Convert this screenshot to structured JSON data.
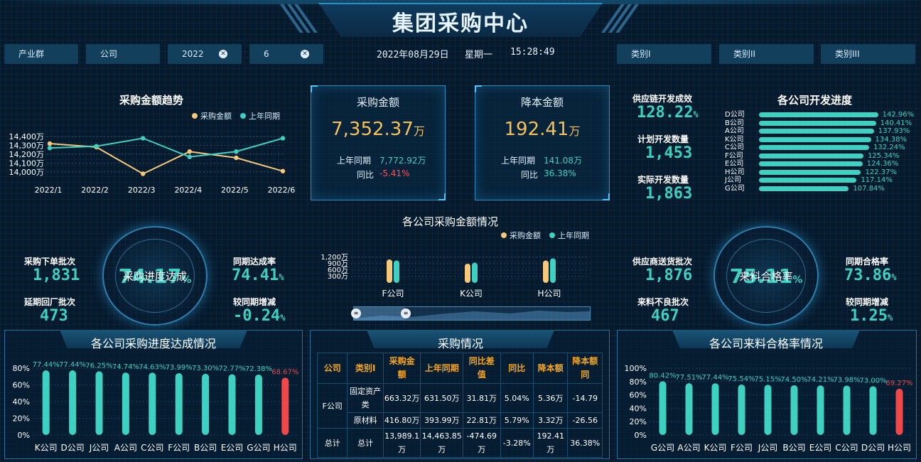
{
  "header": {
    "title": "集团采购中心",
    "date": "2022年08月29日",
    "weekday": "星期一",
    "time": "15:28:49"
  },
  "filters": {
    "industry": "产业群",
    "company": "公司",
    "year": "2022",
    "month": "6",
    "category1": "类别I",
    "category2": "类别II",
    "category3": "类别III"
  },
  "trend": {
    "title": "采购金额趋势",
    "legend_current": "采购金额",
    "legend_last": "上年同期",
    "y_ticks": [
      "14,400万",
      "14,300万",
      "14,200万",
      "14,100万",
      "14,000万"
    ],
    "x_ticks": [
      "2022/1",
      "2022/2",
      "2022/3",
      "2022/4",
      "2022/5",
      "2022/6"
    ],
    "colors": {
      "current": "#f5c87a",
      "last": "#3ed1c2"
    }
  },
  "kpi_purchase": {
    "label": "采购金额",
    "value": "7,352.37",
    "unit": "万",
    "last_label": "上年同期",
    "last_value": "7,772.92万",
    "yoy_label": "同比",
    "yoy_value": "-5.41%"
  },
  "kpi_saving": {
    "label": "降本金额",
    "value": "192.41",
    "unit": "万",
    "last_label": "上年同期",
    "last_value": "141.08万",
    "yoy_label": "同比",
    "yoy_value": "36.38%"
  },
  "supply_dev": {
    "rate_label": "供应链开发成效",
    "rate_value": "128.22",
    "rate_unit": "%",
    "plan_label": "计划开发数量",
    "plan_value": "1,453",
    "actual_label": "实际开发数量",
    "actual_value": "1,863"
  },
  "dev_progress": {
    "title": "各公司开发进度",
    "items": [
      {
        "company": "D公司",
        "value": "142.96%"
      },
      {
        "company": "B公司",
        "value": "140.41%"
      },
      {
        "company": "A公司",
        "value": "137.93%"
      },
      {
        "company": "K公司",
        "value": "134.38%"
      },
      {
        "company": "C公司",
        "value": "132.24%"
      },
      {
        "company": "F公司",
        "value": "125.34%"
      },
      {
        "company": "E公司",
        "value": "124.36%"
      },
      {
        "company": "H公司",
        "value": "122.37%"
      },
      {
        "company": "J公司",
        "value": "117.14%"
      },
      {
        "company": "G公司",
        "value": "107.84%"
      }
    ]
  },
  "company_purchase": {
    "title": "各公司采购金额情况",
    "legend_current": "采购金额",
    "legend_last": "上年同期",
    "y_ticks": [
      "1,200万",
      "900万",
      "600万",
      "300万"
    ],
    "companies": [
      "F公司",
      "K公司",
      "H公司"
    ]
  },
  "left_stats": {
    "order_label": "采购下单批次",
    "order_value": "1,831",
    "delay_label": "延期回厂批次",
    "delay_value": "473",
    "ring_value": "74.17",
    "ring_unit": "%",
    "ring_label": "采购进度达成",
    "yoy_rate_label": "同期达成率",
    "yoy_rate_value": "74.41",
    "change_label": "较同期增减",
    "change_value": "-0.24",
    "unit": "%"
  },
  "right_stats": {
    "delivery_label": "供应商送货批次",
    "delivery_value": "1,876",
    "defect_label": "来料不良批次",
    "defect_value": "467",
    "ring_value": "75.11",
    "ring_unit": "%",
    "ring_label": "来料合格率",
    "yoy_rate_label": "同期合格率",
    "yoy_rate_value": "73.86",
    "change_label": "较同期增减",
    "change_value": "1.25",
    "unit": "%"
  },
  "progress_panel": {
    "title": "各公司采购进度达成情况",
    "y_ticks": [
      "80%",
      "60%",
      "40%",
      "20%",
      "0%"
    ]
  },
  "quality_panel": {
    "title": "各公司来料合格率情况",
    "y_ticks": [
      "100%",
      "80%",
      "60%",
      "40%",
      "20%",
      "0%"
    ]
  },
  "purchase_table": {
    "title": "采购情况",
    "headers": [
      "公司",
      "类别I",
      "采购金额",
      "上年同期",
      "同比差值",
      "同比",
      "降本额",
      "降本额同"
    ],
    "rows": [
      {
        "company": "F公司",
        "category": "固定资产类",
        "amount": "663.32万",
        "last": "631.50万",
        "diff": "31.81万",
        "yoy": "5.04%",
        "saving": "5.36万",
        "saving_yoy": "-14.79"
      },
      {
        "company": "",
        "category": "原材料",
        "amount": "416.80万",
        "last": "393.99万",
        "diff": "22.81万",
        "yoy": "5.79%",
        "saving": "3.32万",
        "saving_yoy": "-26.56"
      },
      {
        "company": "总计",
        "category": "总计",
        "amount": "13,989.1万",
        "last": "14,463.85万",
        "diff": "-474.69万",
        "yoy": "-3.28%",
        "saving": "192.41万",
        "saving_yoy": "36.38%"
      }
    ]
  },
  "chart_data": [
    {
      "type": "line",
      "title": "采购金额趋势",
      "x": [
        "2022/1",
        "2022/2",
        "2022/3",
        "2022/4",
        "2022/5",
        "2022/6"
      ],
      "series": [
        {
          "name": "采购金额",
          "values": [
            14320,
            14280,
            13980,
            14230,
            14160,
            14010
          ]
        },
        {
          "name": "上年同期",
          "values": [
            14270,
            14290,
            14380,
            14170,
            14230,
            14380
          ]
        }
      ],
      "ylim": [
        14000,
        14400
      ],
      "legend": "top-right"
    },
    {
      "type": "bar",
      "title": "各公司采购金额情况",
      "categories": [
        "F公司",
        "K公司",
        "H公司"
      ],
      "series": [
        {
          "name": "采购金额",
          "values": [
            1100,
            900,
            1050
          ]
        },
        {
          "name": "上年同期",
          "values": [
            1050,
            950,
            1150
          ]
        }
      ],
      "ylim": [
        0,
        1200
      ]
    },
    {
      "type": "bar",
      "title": "各公司开发进度",
      "categories": [
        "D公司",
        "B公司",
        "A公司",
        "K公司",
        "C公司",
        "F公司",
        "E公司",
        "H公司",
        "J公司",
        "G公司"
      ],
      "values": [
        142.96,
        140.41,
        137.93,
        134.38,
        132.24,
        125.34,
        124.36,
        122.37,
        117.14,
        107.84
      ]
    },
    {
      "type": "bar",
      "title": "各公司采购进度达成情况",
      "categories": [
        "K公司",
        "D公司",
        "J公司",
        "A公司",
        "C公司",
        "F公司",
        "B公司",
        "E公司",
        "G公司",
        "H公司"
      ],
      "values": [
        77.44,
        77.44,
        76.25,
        74.74,
        74.63,
        73.99,
        73.3,
        72.77,
        72.38,
        68.67
      ],
      "labels": [
        "77.44%",
        "77.44%",
        "76.25%",
        "74.74%",
        "74.63%",
        "73.99%",
        "73.30%",
        "72.77%",
        "72.38%",
        "68.67%"
      ],
      "ylim": [
        0,
        80
      ],
      "colors": {
        "normal": "#3ed1c2",
        "low": "#f04848"
      }
    },
    {
      "type": "bar",
      "title": "各公司来料合格率情况",
      "categories": [
        "G公司",
        "A公司",
        "K公司",
        "F公司",
        "J公司",
        "B公司",
        "E公司",
        "C公司",
        "D公司",
        "H公司"
      ],
      "values": [
        80.42,
        77.51,
        77.44,
        75.54,
        75.15,
        74.5,
        74.21,
        73.98,
        73.0,
        69.27
      ],
      "labels": [
        "80.42%",
        "77.51%",
        "77.44%",
        "75.54%",
        "75.15%",
        "74.50%",
        "74.21%",
        "73.98%",
        "73.00%",
        "69.27%"
      ],
      "ylim": [
        0,
        100
      ],
      "colors": {
        "normal": "#3ed1c2",
        "low": "#f04848"
      }
    }
  ]
}
